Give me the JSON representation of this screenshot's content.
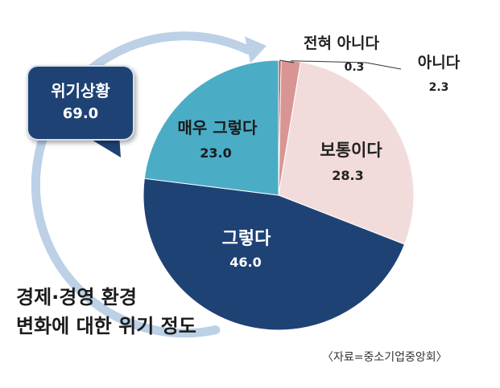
{
  "chart_data": {
    "type": "pie",
    "categories": [
      "전혀 아니다",
      "아니다",
      "보통이다",
      "그렇다",
      "매우 그렇다"
    ],
    "values": [
      "0.3",
      "2.3",
      "28.3",
      "46.0",
      "23.0"
    ],
    "colors": [
      "#c0504d",
      "#d99594",
      "#f2dcdb",
      "#1f4275",
      "#4bacc6"
    ]
  },
  "callout": {
    "title": "위기상황",
    "value": "69.0",
    "color": "#1f4275"
  },
  "title_lines": [
    "경제·경영 환경",
    "변화에 대한 위기 정도"
  ],
  "source": "〈자료=중소기업중앙회〉"
}
